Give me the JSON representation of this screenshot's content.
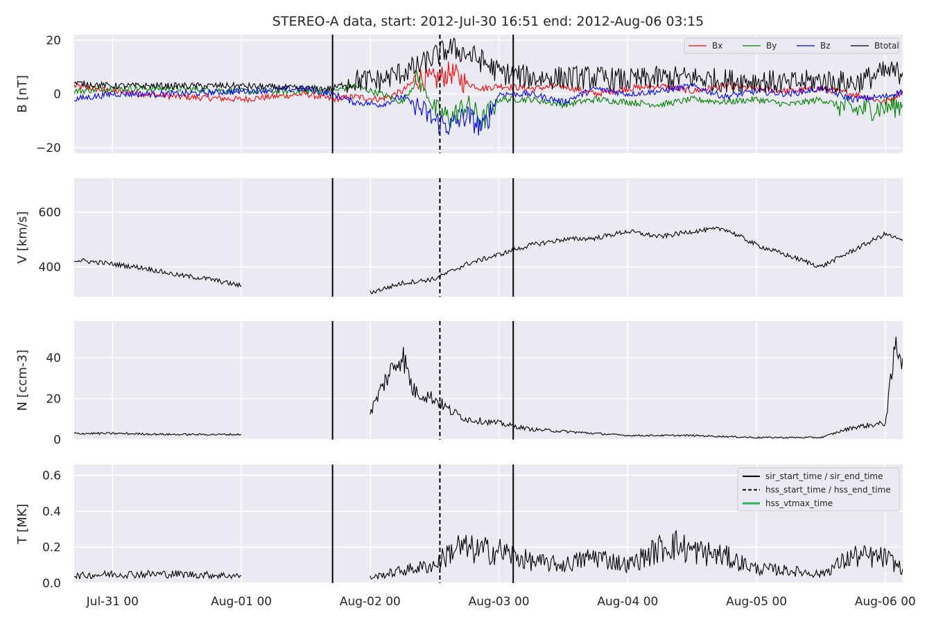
{
  "title": "STEREO-A data, start: 2012-Jul-30 16:51  end: 2012-Aug-06 03:15",
  "chart_data": {
    "type": "line",
    "time_axis": {
      "start": "2012-07-30T16:51",
      "end": "2012-08-06T03:15",
      "tick_labels": [
        "Jul-31 00",
        "Aug-01 00",
        "Aug-02 00",
        "Aug-03 00",
        "Aug-04 00",
        "Aug-05 00",
        "Aug-06 00"
      ],
      "tick_times": [
        "2012-07-31T00:00",
        "2012-08-01T00:00",
        "2012-08-02T00:00",
        "2012-08-03T00:00",
        "2012-08-04T00:00",
        "2012-08-05T00:00",
        "2012-08-06T00:00"
      ]
    },
    "event_lines": {
      "sir_start_time": "2012-08-01T17:00",
      "hss_start_time": "2012-08-02T13:00",
      "sir_end_time": "2012-08-03T02:40",
      "hss_vtmax_time": ""
    },
    "data_gap": [
      "2012-08-01T00:00",
      "2012-08-02T00:00"
    ],
    "panels": [
      {
        "id": "B",
        "ylabel": "B [nT]",
        "ylim": [
          -22,
          22
        ],
        "yticks": [
          -20,
          0,
          20
        ],
        "ytick_labels": [
          "−20",
          "0",
          "20"
        ],
        "legend": {
          "placement": "top-right",
          "entries": [
            "Bx",
            "By",
            "Bz",
            "Btotal"
          ]
        },
        "series": [
          {
            "name": "Bx",
            "color": "#ff0000",
            "x": [
              "2012-07-30T16:51",
              "2012-07-31T00:00",
              "2012-07-31T12:00",
              "2012-08-01T00:00",
              "2012-08-01T12:00",
              "2012-08-01T17:00",
              "2012-08-01T21:00",
              "2012-08-02T02:00",
              "2012-08-02T06:00",
              "2012-08-02T09:00",
              "2012-08-02T12:00",
              "2012-08-02T15:00",
              "2012-08-02T18:00",
              "2012-08-02T21:00",
              "2012-08-03T00:00",
              "2012-08-03T06:00",
              "2012-08-03T12:00",
              "2012-08-03T18:00",
              "2012-08-04T00:00",
              "2012-08-04T06:00",
              "2012-08-04T12:00",
              "2012-08-04T18:00",
              "2012-08-05T00:00",
              "2012-08-05T06:00",
              "2012-08-05T12:00",
              "2012-08-05T18:00",
              "2012-08-06T00:00",
              "2012-08-06T03:15"
            ],
            "y": [
              3,
              1,
              -1,
              -2,
              0,
              -2,
              -1,
              -2,
              1,
              6,
              5,
              8,
              4,
              2,
              3,
              2,
              3,
              0,
              2,
              3,
              1,
              3,
              2,
              1,
              2,
              0,
              -3,
              1
            ]
          },
          {
            "name": "By",
            "color": "#008000",
            "x": [
              "2012-07-30T16:51",
              "2012-07-31T00:00",
              "2012-07-31T12:00",
              "2012-08-01T00:00",
              "2012-08-01T12:00",
              "2012-08-01T17:00",
              "2012-08-01T21:00",
              "2012-08-02T02:00",
              "2012-08-02T06:00",
              "2012-08-02T09:00",
              "2012-08-02T12:00",
              "2012-08-02T15:00",
              "2012-08-02T18:00",
              "2012-08-02T21:00",
              "2012-08-03T00:00",
              "2012-08-03T06:00",
              "2012-08-03T12:00",
              "2012-08-03T18:00",
              "2012-08-04T00:00",
              "2012-08-04T06:00",
              "2012-08-04T12:00",
              "2012-08-04T18:00",
              "2012-08-05T00:00",
              "2012-08-05T06:00",
              "2012-08-05T12:00",
              "2012-08-05T18:00",
              "2012-08-06T00:00",
              "2012-08-06T03:15"
            ],
            "y": [
              1,
              2,
              2,
              1,
              1,
              1,
              3,
              0,
              -3,
              6,
              -6,
              -9,
              -4,
              -10,
              -2,
              -2,
              -4,
              -2,
              -3,
              -4,
              -2,
              -3,
              -2,
              -4,
              -2,
              -6,
              -5,
              -4
            ]
          },
          {
            "name": "Bz",
            "color": "#0000ff",
            "x": [
              "2012-07-30T16:51",
              "2012-07-31T00:00",
              "2012-07-31T12:00",
              "2012-08-01T00:00",
              "2012-08-01T12:00",
              "2012-08-01T17:00",
              "2012-08-01T21:00",
              "2012-08-02T02:00",
              "2012-08-02T06:00",
              "2012-08-02T09:00",
              "2012-08-02T12:00",
              "2012-08-02T15:00",
              "2012-08-02T18:00",
              "2012-08-02T21:00",
              "2012-08-03T00:00",
              "2012-08-03T06:00",
              "2012-08-03T12:00",
              "2012-08-03T18:00",
              "2012-08-04T00:00",
              "2012-08-04T06:00",
              "2012-08-04T12:00",
              "2012-08-04T18:00",
              "2012-08-05T00:00",
              "2012-08-05T06:00",
              "2012-08-05T12:00",
              "2012-08-05T18:00",
              "2012-08-06T00:00",
              "2012-08-06T03:15"
            ],
            "y": [
              -2,
              0,
              0,
              1,
              2,
              0,
              -3,
              -4,
              -1,
              -5,
              -10,
              -12,
              -8,
              -13,
              0,
              0,
              -3,
              2,
              0,
              1,
              3,
              -1,
              1,
              0,
              2,
              -2,
              -1,
              1
            ]
          },
          {
            "name": "Btotal",
            "color": "#000000",
            "x": [
              "2012-07-30T16:51",
              "2012-07-31T00:00",
              "2012-07-31T12:00",
              "2012-08-01T00:00",
              "2012-08-01T12:00",
              "2012-08-01T17:00",
              "2012-08-01T21:00",
              "2012-08-02T02:00",
              "2012-08-02T06:00",
              "2012-08-02T09:00",
              "2012-08-02T12:00",
              "2012-08-02T15:00",
              "2012-08-02T18:00",
              "2012-08-02T21:00",
              "2012-08-03T00:00",
              "2012-08-03T06:00",
              "2012-08-03T12:00",
              "2012-08-03T18:00",
              "2012-08-04T00:00",
              "2012-08-04T06:00",
              "2012-08-04T12:00",
              "2012-08-04T18:00",
              "2012-08-05T00:00",
              "2012-08-05T06:00",
              "2012-08-05T12:00",
              "2012-08-05T18:00",
              "2012-08-06T00:00",
              "2012-08-06T03:15"
            ],
            "y": [
              4,
              3,
              3,
              3,
              2,
              2,
              5,
              5,
              8,
              10,
              14,
              17,
              15,
              12,
              8,
              6,
              6,
              6,
              5,
              6,
              6,
              5,
              5,
              4,
              5,
              4,
              8,
              8
            ]
          }
        ]
      },
      {
        "id": "V",
        "ylabel": "V [km/s]",
        "ylim": [
          290,
          725
        ],
        "yticks": [
          400,
          600
        ],
        "ytick_labels": [
          "400",
          "600"
        ],
        "series": [
          {
            "name": "",
            "color": "#000000",
            "segments": [
              {
                "x": [
                  "2012-07-30T16:51",
                  "2012-07-30T22:00",
                  "2012-07-31T06:00",
                  "2012-07-31T12:00",
                  "2012-07-31T18:00",
                  "2012-08-01T00:00"
                ],
                "y": [
                  425,
                  415,
                  395,
                  370,
                  355,
                  330
                ]
              },
              {
                "x": [
                  "2012-08-02T00:00",
                  "2012-08-02T06:00",
                  "2012-08-02T12:00",
                  "2012-08-02T18:00",
                  "2012-08-03T00:00",
                  "2012-08-03T06:00",
                  "2012-08-03T12:00",
                  "2012-08-03T18:00",
                  "2012-08-04T00:00",
                  "2012-08-04T06:00",
                  "2012-08-04T12:00",
                  "2012-08-04T18:00",
                  "2012-08-05T00:00",
                  "2012-08-05T06:00",
                  "2012-08-05T12:00",
                  "2012-08-05T18:00",
                  "2012-08-06T00:00",
                  "2012-08-06T03:15"
                ],
                "y": [
                  305,
                  340,
                  355,
                  410,
                  445,
                  480,
                  500,
                  505,
                  530,
                  510,
                  530,
                  540,
                  480,
                  440,
                  400,
                  460,
                  520,
                  495
                ]
              }
            ]
          }
        ]
      },
      {
        "id": "N",
        "ylabel": "N [ccm-3]",
        "ylim": [
          0,
          58
        ],
        "yticks": [
          0,
          20,
          40
        ],
        "ytick_labels": [
          "0",
          "20",
          "40"
        ],
        "series": [
          {
            "name": "",
            "color": "#000000",
            "segments": [
              {
                "x": [
                  "2012-07-30T16:51",
                  "2012-07-31T00:00",
                  "2012-07-31T12:00",
                  "2012-08-01T00:00"
                ],
                "y": [
                  3,
                  3,
                  2.5,
                  2.5
                ]
              },
              {
                "x": [
                  "2012-08-02T00:00",
                  "2012-08-02T03:00",
                  "2012-08-02T06:00",
                  "2012-08-02T08:00",
                  "2012-08-02T12:00",
                  "2012-08-02T15:00",
                  "2012-08-02T18:00",
                  "2012-08-03T00:00",
                  "2012-08-03T06:00",
                  "2012-08-03T12:00",
                  "2012-08-04T00:00",
                  "2012-08-04T12:00",
                  "2012-08-05T00:00",
                  "2012-08-05T12:00",
                  "2012-08-05T18:00",
                  "2012-08-06T00:00",
                  "2012-08-06T02:00",
                  "2012-08-06T03:15"
                ],
                "y": [
                  13,
                  30,
                  42,
                  24,
                  20,
                  14,
                  10,
                  8,
                  5,
                  4,
                  2,
                  2,
                  1,
                  1,
                  6,
                  8,
                  47,
                  40
                ]
              }
            ]
          }
        ]
      },
      {
        "id": "T",
        "ylabel": "T [MK]",
        "ylim": [
          0,
          0.66
        ],
        "yticks": [
          0.0,
          0.2,
          0.4,
          0.6
        ],
        "ytick_labels": [
          "0.0",
          "0.2",
          "0.4",
          "0.6"
        ],
        "legend": {
          "placement": "top-right",
          "entries": [
            "sir_start_time / sir_end_time",
            "hss_start_time / hss_end_time",
            "hss_vtmax_time"
          ]
        },
        "series": [
          {
            "name": "",
            "color": "#000000",
            "segments": [
              {
                "x": [
                  "2012-07-30T16:51",
                  "2012-07-31T00:00",
                  "2012-07-31T12:00",
                  "2012-08-01T00:00"
                ],
                "y": [
                  0.04,
                  0.05,
                  0.05,
                  0.04
                ]
              },
              {
                "x": [
                  "2012-08-02T00:00",
                  "2012-08-02T06:00",
                  "2012-08-02T12:00",
                  "2012-08-02T16:00",
                  "2012-08-02T20:00",
                  "2012-08-03T00:00",
                  "2012-08-03T06:00",
                  "2012-08-03T12:00",
                  "2012-08-03T18:00",
                  "2012-08-04T00:00",
                  "2012-08-04T08:00",
                  "2012-08-04T12:00",
                  "2012-08-04T18:00",
                  "2012-08-05T00:00",
                  "2012-08-05T06:00",
                  "2012-08-05T12:00",
                  "2012-08-05T18:00",
                  "2012-08-06T00:00",
                  "2012-08-06T03:15"
                ],
                "y": [
                  0.03,
                  0.07,
                  0.1,
                  0.2,
                  0.18,
                  0.18,
                  0.12,
                  0.1,
                  0.15,
                  0.1,
                  0.22,
                  0.18,
                  0.15,
                  0.08,
                  0.07,
                  0.05,
                  0.15,
                  0.14,
                  0.08
                ]
              }
            ]
          }
        ]
      }
    ]
  }
}
